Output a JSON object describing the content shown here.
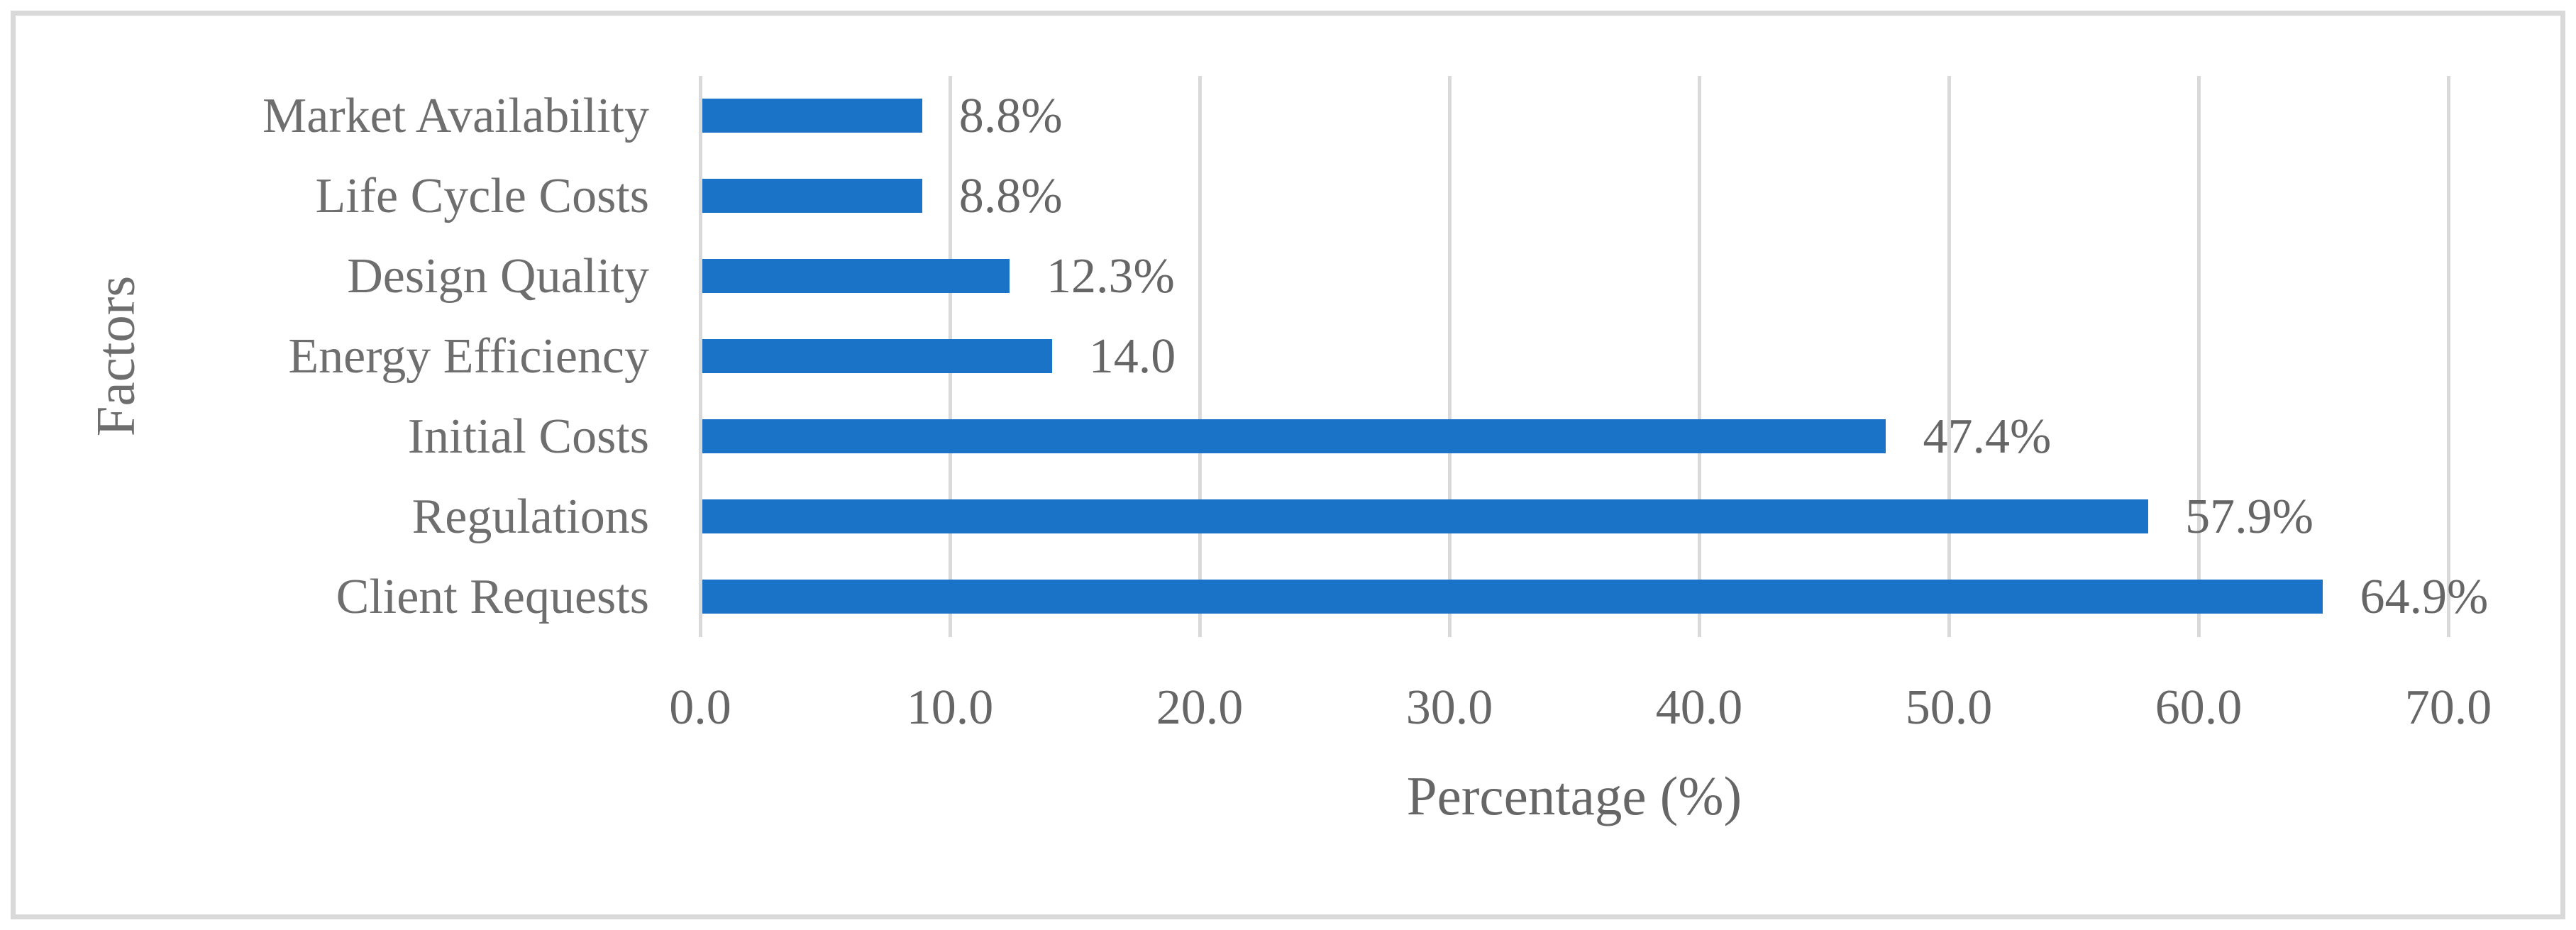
{
  "chart_data": {
    "type": "bar",
    "orientation": "horizontal",
    "title": "",
    "xlabel": "Percentage (%)",
    "ylabel": "Factors",
    "categories": [
      "Market Availability",
      "Life Cycle Costs",
      "Design Quality",
      "Energy Efficiency",
      "Initial Costs",
      "Regulations",
      "Client Requests"
    ],
    "values": [
      8.8,
      8.8,
      12.3,
      14.0,
      47.4,
      57.9,
      64.9
    ],
    "value_labels": [
      "8.8%",
      "8.8%",
      "12.3%",
      "14.0",
      "47.4%",
      "57.9%",
      "64.9%"
    ],
    "xlim": [
      0,
      70
    ],
    "xticks": [
      "0.0",
      "10.0",
      "20.0",
      "30.0",
      "40.0",
      "50.0",
      "60.0",
      "70.0"
    ],
    "grid": "vertical-gridlines",
    "legend": "none",
    "colors": {
      "bar": "#1b73c8",
      "gridline": "#d9d9d9",
      "frame": "#d9d9d9",
      "text": "#666666",
      "background": "#ffffff"
    }
  }
}
